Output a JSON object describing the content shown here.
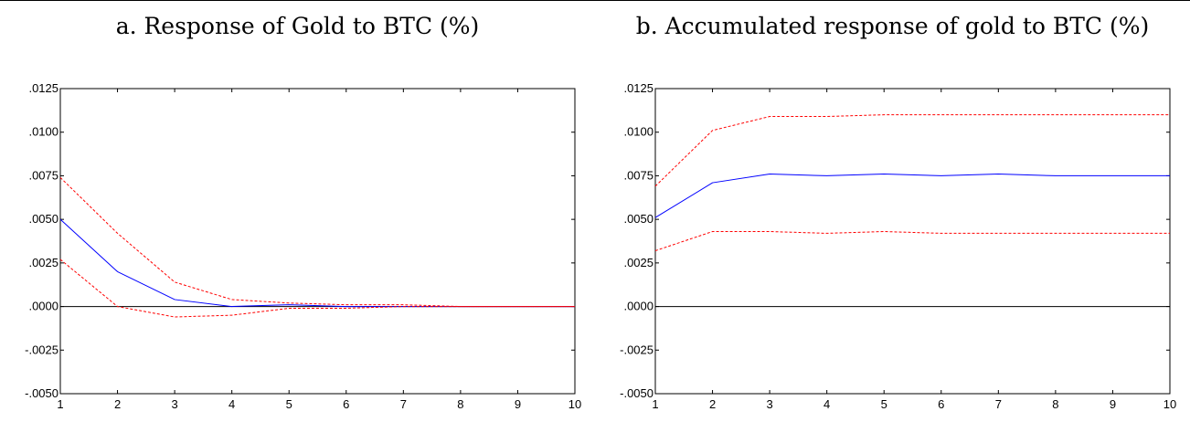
{
  "titles": {
    "a": "a.  Response of Gold to BTC (%)",
    "b": "b.  Accumulated response of gold to BTC (%)"
  },
  "colors": {
    "response_line": "#0000ff",
    "band_line": "#ff0000",
    "zero_line": "#000000"
  },
  "chart_data": [
    {
      "type": "line",
      "title": "a.  Response of Gold to BTC (%)",
      "xlabel": "",
      "ylabel": "",
      "x": [
        1,
        2,
        3,
        4,
        5,
        6,
        7,
        8,
        9,
        10
      ],
      "xlim": [
        1,
        10
      ],
      "ylim": [
        -0.005,
        0.0125
      ],
      "yticks": [
        -0.005,
        -0.0025,
        0.0,
        0.0025,
        0.005,
        0.0075,
        0.01,
        0.0125
      ],
      "ytick_labels": [
        "-.0050",
        "-.0025",
        ".0000",
        ".0025",
        ".0050",
        ".0075",
        ".0100",
        ".0125"
      ],
      "xtick_labels": [
        "1",
        "2",
        "3",
        "4",
        "5",
        "6",
        "7",
        "8",
        "9",
        "10"
      ],
      "grid": false,
      "zero_line": true,
      "series": [
        {
          "style": "solid",
          "color": "#0000ff",
          "values": [
            0.005,
            0.002,
            0.0004,
            0.0,
            0.0001,
            0.0,
            0.0,
            0.0,
            0.0,
            0.0
          ]
        },
        {
          "style": "dashed",
          "color": "#ff0000",
          "values": [
            0.0074,
            0.0042,
            0.0014,
            0.0004,
            0.0002,
            0.0001,
            0.0001,
            0.0,
            0.0,
            0.0
          ]
        },
        {
          "style": "dashed",
          "color": "#ff0000",
          "values": [
            0.0027,
            0.0,
            -0.0006,
            -0.0005,
            -0.0001,
            -0.0001,
            0.0,
            0.0,
            0.0,
            0.0
          ]
        }
      ]
    },
    {
      "type": "line",
      "title": "b.  Accumulated response of gold to BTC (%)",
      "xlabel": "",
      "ylabel": "",
      "x": [
        1,
        2,
        3,
        4,
        5,
        6,
        7,
        8,
        9,
        10
      ],
      "xlim": [
        1,
        10
      ],
      "ylim": [
        -0.005,
        0.0125
      ],
      "yticks": [
        -0.005,
        -0.0025,
        0.0,
        0.0025,
        0.005,
        0.0075,
        0.01,
        0.0125
      ],
      "ytick_labels": [
        "-.0050",
        "-.0025",
        ".0000",
        ".0025",
        ".0050",
        ".0075",
        ".0100",
        ".0125"
      ],
      "xtick_labels": [
        "1",
        "2",
        "3",
        "4",
        "5",
        "6",
        "7",
        "8",
        "9",
        "10"
      ],
      "grid": false,
      "zero_line": true,
      "series": [
        {
          "style": "solid",
          "color": "#0000ff",
          "values": [
            0.0051,
            0.0071,
            0.0076,
            0.0075,
            0.0076,
            0.0075,
            0.0076,
            0.0075,
            0.0075,
            0.0075
          ]
        },
        {
          "style": "dashed",
          "color": "#ff0000",
          "values": [
            0.0069,
            0.0101,
            0.0109,
            0.0109,
            0.011,
            0.011,
            0.011,
            0.011,
            0.011,
            0.011
          ]
        },
        {
          "style": "dashed",
          "color": "#ff0000",
          "values": [
            0.0032,
            0.0043,
            0.0043,
            0.0042,
            0.0043,
            0.0042,
            0.0042,
            0.0042,
            0.0042,
            0.0042
          ]
        }
      ]
    }
  ]
}
